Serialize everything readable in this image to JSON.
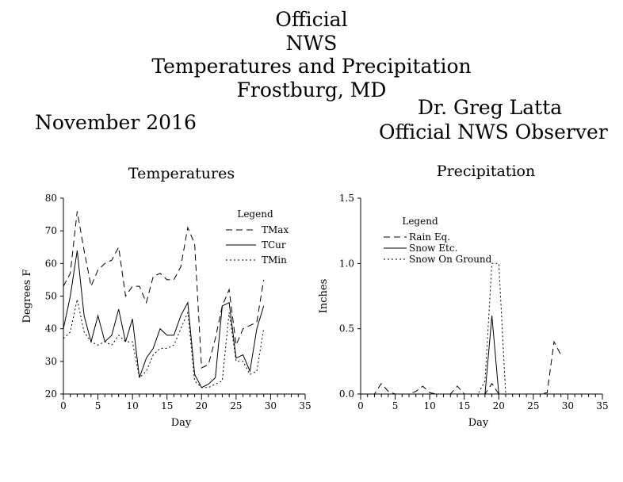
{
  "header": {
    "lines": [
      "Official",
      "NWS",
      "Temperatures and Precipitation",
      "Frostburg, MD"
    ]
  },
  "month_label": "November 2016",
  "observer": {
    "lines": [
      "Dr. Greg Latta",
      "Official NWS Observer"
    ]
  },
  "chart_data": [
    {
      "type": "line",
      "title": "Temperatures",
      "xlabel": "Day",
      "ylabel": "Degrees F",
      "xlim": [
        0,
        35
      ],
      "ylim": [
        20,
        80
      ],
      "xticks": [
        0,
        5,
        10,
        15,
        20,
        25,
        30,
        35
      ],
      "yticks": [
        20,
        30,
        40,
        50,
        60,
        70,
        80
      ],
      "legend": {
        "title": "Legend",
        "placement": "top-right"
      },
      "x": [
        0,
        1,
        2,
        3,
        4,
        5,
        6,
        7,
        8,
        9,
        10,
        11,
        12,
        13,
        14,
        15,
        16,
        17,
        18,
        19,
        20,
        21,
        22,
        23,
        24,
        25,
        26,
        27,
        28,
        29
      ],
      "series": [
        {
          "name": "TMax",
          "dash": "dashed",
          "values": [
            53,
            57,
            76,
            64,
            53,
            58,
            60,
            61,
            65,
            50,
            53,
            53,
            48,
            56,
            57,
            55,
            55,
            59,
            71,
            66,
            28,
            29,
            37,
            47,
            52,
            35,
            40,
            41,
            42,
            55
          ]
        },
        {
          "name": "TCur",
          "dash": "solid",
          "values": [
            40,
            50,
            64,
            44,
            36,
            44,
            36,
            38,
            46,
            36,
            43,
            25,
            31,
            34,
            40,
            38,
            38,
            44,
            48,
            26,
            22,
            23,
            25,
            47,
            48,
            31,
            32,
            27,
            40,
            47
          ]
        },
        {
          "name": "TMin",
          "dash": "dotted",
          "values": [
            37,
            39,
            49,
            39,
            36,
            35,
            36,
            35,
            38,
            36,
            36,
            25,
            27,
            32,
            34,
            34,
            35,
            40,
            45,
            24,
            22,
            22,
            23,
            24,
            45,
            30,
            30,
            26,
            27,
            40
          ]
        }
      ]
    },
    {
      "type": "line",
      "title": "Precipitation",
      "xlabel": "Day",
      "ylabel": "Inches",
      "xlim": [
        0,
        35
      ],
      "ylim": [
        0,
        1.5
      ],
      "xticks": [
        0,
        5,
        10,
        15,
        20,
        25,
        30,
        35
      ],
      "yticks": [
        0.0,
        0.5,
        1.0,
        1.5
      ],
      "ytick_labels": [
        "0.0",
        "0.5",
        "1.0",
        "1.5"
      ],
      "legend": {
        "title": "Legend",
        "placement": "top-left"
      },
      "x": [
        0,
        1,
        2,
        3,
        4,
        5,
        6,
        7,
        8,
        9,
        10,
        11,
        12,
        13,
        14,
        15,
        16,
        17,
        18,
        19,
        20,
        21,
        22,
        23,
        24,
        25,
        26,
        27,
        28,
        29
      ],
      "series": [
        {
          "name": "Rain Eq.",
          "dash": "dashed",
          "values": [
            0,
            0,
            0,
            0.08,
            0.02,
            0,
            0,
            0,
            0.02,
            0.06,
            0.01,
            0,
            0,
            0,
            0.06,
            0,
            0,
            0,
            0,
            0.08,
            0,
            0,
            0,
            0,
            0,
            0,
            0,
            0.01,
            0.4,
            0.3
          ]
        },
        {
          "name": "Snow Etc.",
          "dash": "solid",
          "values": [
            0,
            0,
            0,
            0,
            0,
            0,
            0,
            0,
            0,
            0,
            0,
            0,
            0,
            0,
            0,
            0,
            0,
            0,
            0,
            0.6,
            0,
            0,
            0,
            0,
            0,
            0,
            0,
            0,
            0,
            0
          ]
        },
        {
          "name": "Snow On Ground",
          "dash": "dotted",
          "values": [
            0,
            0,
            0,
            0,
            0,
            0,
            0,
            0,
            0,
            0,
            0,
            0,
            0,
            0,
            0,
            0,
            0,
            0,
            0.1,
            1.0,
            1.0,
            0,
            0,
            0,
            0,
            0,
            0,
            0,
            0,
            0
          ]
        }
      ]
    }
  ]
}
